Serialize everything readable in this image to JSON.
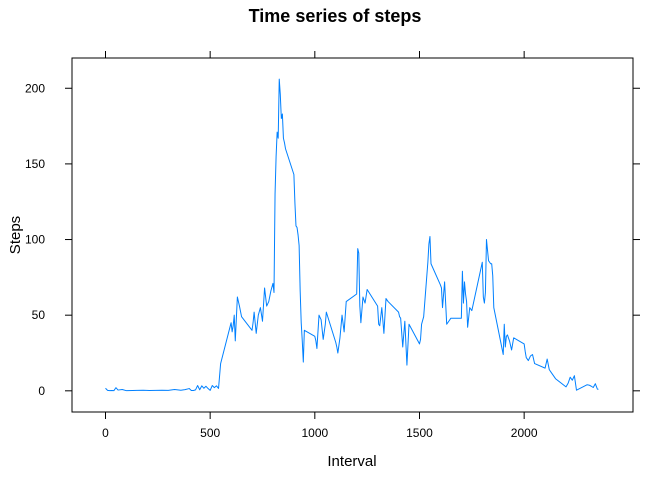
{
  "chart_data": {
    "type": "line",
    "title": "Time series of steps",
    "xlabel": "Interval",
    "ylabel": "Steps",
    "xlim": [
      -160,
      2520
    ],
    "ylim": [
      -14,
      220
    ],
    "x_ticks": [
      0,
      500,
      1000,
      1500,
      2000
    ],
    "x_tick_labels": [
      "0",
      "500",
      "1000",
      "1500",
      "2000"
    ],
    "y_ticks": [
      0,
      50,
      100,
      150,
      200
    ],
    "y_tick_labels": [
      "0",
      "50",
      "100",
      "150",
      "200"
    ],
    "grid": false,
    "line_color": "#0080ff",
    "series": [
      {
        "x": [
          0,
          10,
          20,
          30,
          40,
          50,
          60,
          80,
          100,
          130,
          150,
          180,
          210,
          240,
          270,
          300,
          330,
          360,
          380,
          400,
          410,
          420,
          430,
          440,
          450,
          460,
          470,
          480,
          490,
          500,
          510,
          520,
          530,
          540,
          550,
          600,
          605,
          610,
          615,
          620,
          630,
          640,
          650,
          700,
          705,
          710,
          720,
          730,
          740,
          750,
          760,
          770,
          780,
          790,
          800,
          805,
          810,
          815,
          820,
          825,
          830,
          835,
          840,
          845,
          850,
          855,
          860,
          900,
          905,
          910,
          915,
          920,
          925,
          930,
          935,
          940,
          945,
          950,
          1000,
          1005,
          1010,
          1020,
          1030,
          1040,
          1050,
          1055,
          1100,
          1105,
          1110,
          1120,
          1130,
          1140,
          1150,
          1200,
          1205,
          1210,
          1215,
          1220,
          1230,
          1240,
          1250,
          1300,
          1305,
          1310,
          1320,
          1330,
          1340,
          1350,
          1400,
          1405,
          1410,
          1420,
          1430,
          1440,
          1450,
          1500,
          1505,
          1510,
          1520,
          1530,
          1540,
          1545,
          1550,
          1555,
          1600,
          1605,
          1610,
          1620,
          1630,
          1640,
          1650,
          1700,
          1705,
          1710,
          1715,
          1720,
          1725,
          1730,
          1740,
          1750,
          1800,
          1805,
          1810,
          1815,
          1820,
          1830,
          1840,
          1845,
          1850,
          1855,
          1900,
          1905,
          1910,
          1915,
          1920,
          1930,
          1940,
          1950,
          2000,
          2005,
          2010,
          2020,
          2030,
          2040,
          2050,
          2100,
          2110,
          2120,
          2130,
          2140,
          2150,
          2200,
          2210,
          2220,
          2230,
          2240,
          2250,
          2300,
          2310,
          2320,
          2330,
          2340,
          2350,
          2355
        ],
        "y": [
          1.7,
          0.3,
          0.1,
          0.2,
          0.1,
          2.1,
          0.5,
          0.9,
          0.1,
          0.2,
          0.3,
          0.4,
          0.2,
          0.3,
          0.4,
          0.3,
          0.9,
          0.4,
          0.8,
          1.5,
          0.2,
          0.2,
          0.6,
          3.5,
          0.7,
          3.3,
          1.7,
          3.0,
          1.5,
          0.3,
          3.5,
          2.1,
          3.3,
          1.6,
          18.0,
          45.0,
          39.0,
          43.0,
          50.0,
          33.0,
          62.0,
          56.0,
          49.0,
          40.0,
          45.0,
          52.0,
          38.0,
          50.0,
          55.0,
          46.0,
          68.0,
          56.0,
          59.0,
          66.0,
          71.0,
          65.0,
          130.0,
          155.0,
          171.0,
          167.0,
          206.0,
          196.0,
          180.0,
          183.0,
          167.0,
          164.0,
          160.0,
          143.0,
          124.0,
          109.0,
          108.0,
          103.0,
          96.0,
          66.0,
          45.0,
          33.0,
          19.0,
          40.0,
          36.0,
          33.0,
          28.0,
          50.0,
          47.0,
          34.0,
          44.0,
          52.0,
          32.0,
          29.0,
          25.0,
          35.0,
          50.0,
          39.0,
          59.0,
          64.0,
          94.0,
          91.0,
          56.0,
          45.0,
          62.0,
          58.0,
          67.0,
          56.0,
          44.0,
          43.0,
          55.0,
          38.0,
          61.0,
          59.0,
          52.0,
          49.0,
          48.0,
          29.0,
          46.0,
          17.0,
          44.0,
          31.0,
          34.0,
          44.0,
          49.0,
          67.0,
          85.0,
          97.0,
          102.0,
          84.0,
          70.0,
          68.0,
          55.0,
          72.0,
          44.0,
          46.0,
          48.0,
          48.0,
          79.0,
          58.0,
          72.0,
          64.0,
          59.0,
          42.0,
          55.0,
          53.0,
          85.0,
          62.0,
          58.0,
          65.0,
          100.0,
          86.0,
          84.0,
          84.0,
          76.0,
          55.0,
          24.0,
          44.0,
          29.0,
          36.0,
          37.0,
          33.0,
          27.0,
          35.0,
          31.0,
          26.0,
          22.0,
          20.0,
          23.0,
          24.0,
          18.0,
          15.0,
          21.0,
          14.0,
          12.0,
          10.0,
          8.0,
          2.6,
          5.0,
          9.0,
          7.0,
          10.0,
          0.4,
          4.0,
          3.8,
          3.1,
          2.2,
          4.7,
          1.1,
          1.0
        ]
      }
    ]
  }
}
